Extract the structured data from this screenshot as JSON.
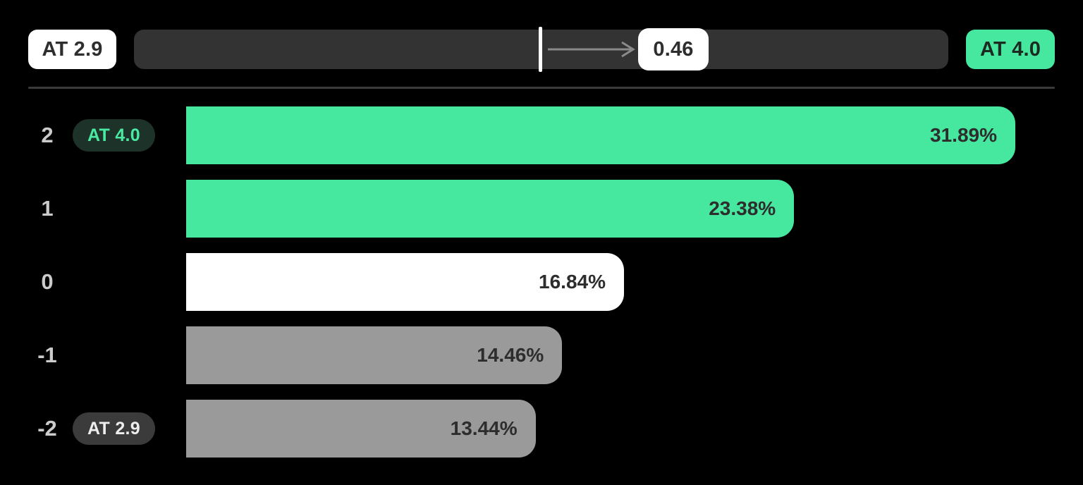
{
  "header": {
    "left_label": "AT 2.9",
    "right_label": "AT 4.0",
    "slider_value": "0.46"
  },
  "colors": {
    "background": "#000000",
    "accent_green": "#46e8a0",
    "bar_white": "#ffffff",
    "bar_gray": "#9a9a9a",
    "track_bg": "#333333",
    "divider": "#3a3a3a",
    "badge_green_bg": "#1d3229",
    "badge_green_text": "#4ae9a2",
    "badge_gray_bg": "#3b3b3b",
    "arrow_gray": "#8a8a8a"
  },
  "chart_data": {
    "type": "bar",
    "orientation": "horizontal",
    "title": "",
    "categories": [
      "2",
      "1",
      "0",
      "-1",
      "-2"
    ],
    "values": [
      31.89,
      23.38,
      16.84,
      14.46,
      13.44
    ],
    "value_labels": [
      "31.89%",
      "23.38%",
      "16.84%",
      "14.46%",
      "13.44%"
    ],
    "xlim": [
      0,
      31.89
    ],
    "grid": false,
    "legend": false,
    "rows": [
      {
        "label": "2",
        "badge": "AT 4.0",
        "value": 31.89,
        "value_label": "31.89%",
        "color": "#46e8a0"
      },
      {
        "label": "1",
        "badge": "",
        "value": 23.38,
        "value_label": "23.38%",
        "color": "#46e8a0"
      },
      {
        "label": "0",
        "badge": "",
        "value": 16.84,
        "value_label": "16.84%",
        "color": "#ffffff"
      },
      {
        "label": "-1",
        "badge": "",
        "value": 14.46,
        "value_label": "14.46%",
        "color": "#9a9a9a"
      },
      {
        "label": "-2",
        "badge": "AT 2.9",
        "value": 13.44,
        "value_label": "13.44%",
        "color": "#9a9a9a"
      }
    ]
  }
}
